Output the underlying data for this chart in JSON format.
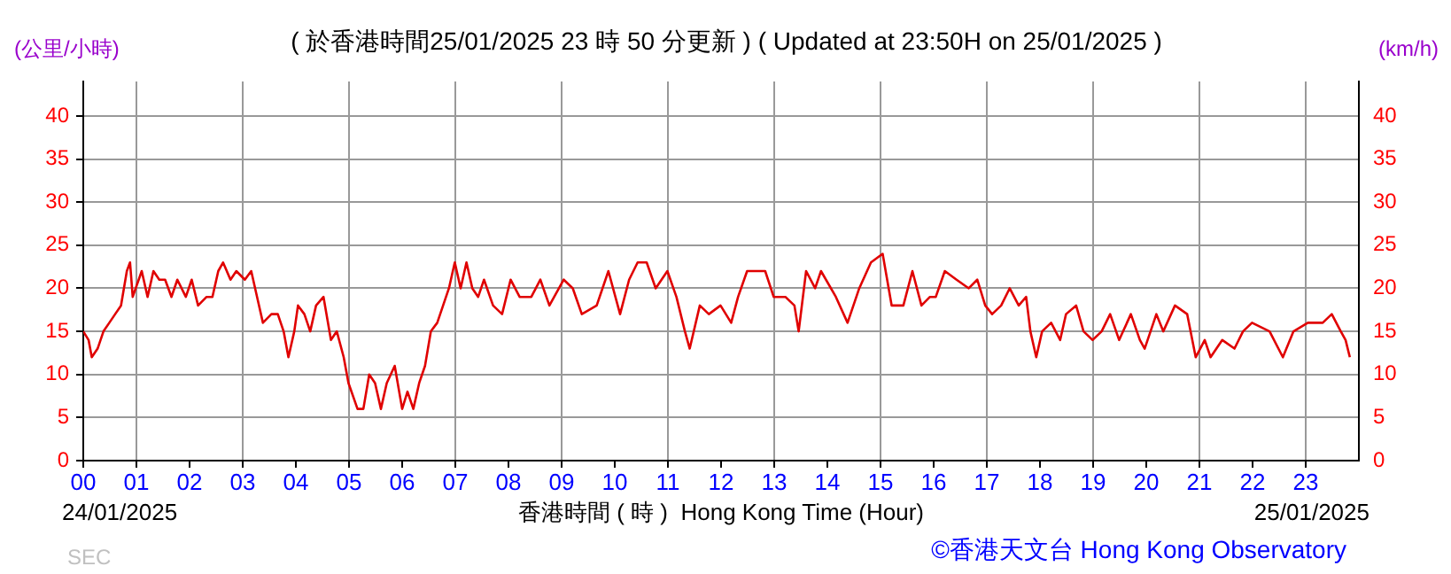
{
  "chart_data": {
    "type": "line",
    "title": "( 於香港時間25/01/2025 23 時 50 分更新 ) ( Updated at 23:50H on 25/01/2025 )",
    "ylabel": "(公里/小時)",
    "y2label": "(km/h)",
    "xlabel": "香港時間 ( 時 )  Hong Kong Time (Hour)",
    "annotations": [
      "24/01/2025",
      "25/01/2025",
      "©香港天文台 Hong Kong Observatory",
      "SEC"
    ],
    "x": [
      0,
      0.1,
      0.16,
      0.27,
      0.38,
      0.49,
      0.6,
      0.71,
      0.82,
      0.88,
      0.93,
      1.1,
      1.21,
      1.32,
      1.43,
      1.54,
      1.66,
      1.77,
      1.93,
      2.04,
      2.16,
      2.32,
      2.43,
      2.54,
      2.63,
      2.77,
      2.88,
      3.04,
      3.16,
      3.27,
      3.38,
      3.54,
      3.66,
      3.77,
      3.86,
      3.97,
      4.04,
      4.16,
      4.27,
      4.38,
      4.52,
      4.66,
      4.77,
      4.9,
      4.99,
      5.16,
      5.27,
      5.38,
      5.49,
      5.6,
      5.71,
      5.86,
      6.0,
      6.1,
      6.21,
      6.32,
      6.43,
      6.54,
      6.66,
      6.77,
      6.88,
      6.99,
      7.1,
      7.21,
      7.32,
      7.43,
      7.54,
      7.71,
      7.88,
      8.04,
      8.21,
      8.43,
      8.6,
      8.77,
      9.04,
      9.21,
      9.38,
      9.66,
      9.88,
      10.1,
      10.27,
      10.43,
      10.6,
      10.77,
      10.99,
      11.16,
      11.32,
      11.41,
      11.6,
      11.77,
      11.99,
      12.19,
      12.32,
      12.49,
      12.66,
      12.83,
      12.99,
      13.21,
      13.38,
      13.46,
      13.6,
      13.77,
      13.88,
      14.16,
      14.38,
      14.6,
      14.82,
      15.04,
      15.21,
      15.43,
      15.6,
      15.77,
      15.93,
      16.04,
      16.21,
      16.43,
      16.66,
      16.82,
      16.97,
      17.1,
      17.27,
      17.43,
      17.6,
      17.74,
      17.82,
      17.93,
      18.04,
      18.21,
      18.38,
      18.49,
      18.68,
      18.82,
      18.99,
      19.16,
      19.32,
      19.49,
      19.71,
      19.88,
      19.97,
      20.19,
      20.32,
      20.54,
      20.77,
      20.93,
      21.1,
      21.21,
      21.43,
      21.66,
      21.82,
      21.99,
      22.32,
      22.57,
      22.77,
      23.04,
      23.32,
      23.49,
      23.66,
      23.75,
      23.83
    ],
    "series": [
      {
        "color": "#e00000",
        "values": [
          15,
          14,
          12,
          13,
          15,
          16,
          17,
          18,
          22,
          23,
          19,
          22,
          19,
          22,
          21,
          21,
          19,
          21,
          19,
          21,
          18,
          19,
          19,
          22,
          23,
          21,
          22,
          21,
          22,
          19,
          16,
          17,
          17,
          15,
          12,
          15,
          18,
          17,
          15,
          18,
          19,
          14,
          15,
          12,
          9,
          6,
          6,
          10,
          9,
          6,
          9,
          11,
          6,
          8,
          6,
          9,
          11,
          15,
          16,
          18,
          20,
          23,
          20,
          23,
          20,
          19,
          21,
          18,
          17,
          21,
          19,
          19,
          21,
          18,
          21,
          20,
          17,
          18,
          22,
          17,
          21,
          23,
          23,
          20,
          22,
          19,
          15,
          13,
          18,
          17,
          18,
          16,
          19,
          22,
          22,
          22,
          19,
          19,
          18,
          15,
          22,
          20,
          22,
          19,
          16,
          20,
          23,
          24,
          18,
          18,
          22,
          18,
          19,
          19,
          22,
          21,
          20,
          21,
          18,
          17,
          18,
          20,
          18,
          19,
          15,
          12,
          15,
          16,
          14,
          17,
          18,
          15,
          14,
          15,
          17,
          14,
          17,
          14,
          13,
          17,
          15,
          18,
          17,
          12,
          14,
          12,
          14,
          13,
          15,
          16,
          15,
          12,
          15,
          16,
          16,
          17,
          15,
          14,
          12
        ]
      }
    ],
    "xlim": [
      0,
      24
    ],
    "xticks": [
      {
        "value": 0,
        "label": "00"
      },
      {
        "value": 1,
        "label": "01"
      },
      {
        "value": 2,
        "label": "02"
      },
      {
        "value": 3,
        "label": "03"
      },
      {
        "value": 4,
        "label": "04"
      },
      {
        "value": 5,
        "label": "05"
      },
      {
        "value": 6,
        "label": "06"
      },
      {
        "value": 7,
        "label": "07"
      },
      {
        "value": 8,
        "label": "08"
      },
      {
        "value": 9,
        "label": "09"
      },
      {
        "value": 10,
        "label": "10"
      },
      {
        "value": 11,
        "label": "11"
      },
      {
        "value": 12,
        "label": "12"
      },
      {
        "value": 13,
        "label": "13"
      },
      {
        "value": 14,
        "label": "14"
      },
      {
        "value": 15,
        "label": "15"
      },
      {
        "value": 16,
        "label": "16"
      },
      {
        "value": 17,
        "label": "17"
      },
      {
        "value": 18,
        "label": "18"
      },
      {
        "value": 19,
        "label": "19"
      },
      {
        "value": 20,
        "label": "20"
      },
      {
        "value": 21,
        "label": "21"
      },
      {
        "value": 22,
        "label": "22"
      },
      {
        "value": 23,
        "label": "23"
      }
    ],
    "ylim": [
      0,
      44
    ],
    "yticks": [
      0,
      5,
      10,
      15,
      20,
      25,
      30,
      35,
      40
    ],
    "y2lim": [
      0,
      44
    ],
    "y2ticks": [
      0,
      5,
      10,
      15,
      20,
      25,
      30,
      35,
      40
    ],
    "grid": true,
    "legend": false,
    "marker": "none",
    "line_style": "solid"
  }
}
